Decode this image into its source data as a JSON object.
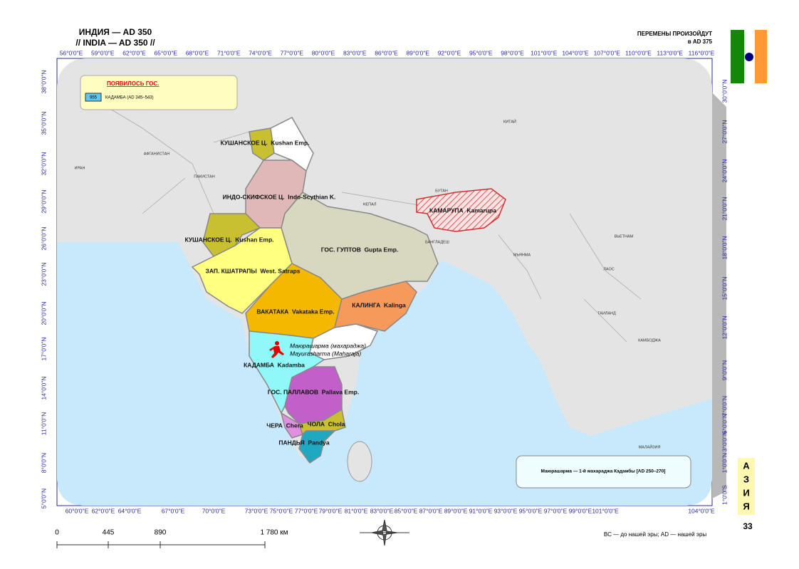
{
  "header": {
    "title_ru": "ИНДИЯ — AD 350",
    "title_en": "// INDIA — AD 350 //",
    "next_change": "ПЕРЕМЕНЫ ПРОИЗОЙДУТ",
    "next_date": "в AD 375"
  },
  "graticule": {
    "top": [
      "56°0'0\"E",
      "59°0'0\"E",
      "62°0'0\"E",
      "65°0'0\"E",
      "68°0'0\"E",
      "71°0'0\"E",
      "74°0'0\"E",
      "77°0'0\"E",
      "80°0'0\"E",
      "83°0'0\"E",
      "86°0'0\"E",
      "89°0'0\"E",
      "92°0'0\"E",
      "95°0'0\"E",
      "98°0'0\"E",
      "101°0'0\"E",
      "104°0'0\"E",
      "107°0'0\"E",
      "110°0'0\"E",
      "113°0'0\"E",
      "116°0'0\"E"
    ],
    "bottom": [
      "60°0'0\"E",
      "62°0'0\"E",
      "64°0'0\"E",
      "67°0'0\"E",
      "70°0'0\"E",
      "73°0'0\"E",
      "75°0'0\"E",
      "77°0'0\"E",
      "79°0'0\"E",
      "81°0'0\"E",
      "83°0'0\"E",
      "85°0'0\"E",
      "87°0'0\"E",
      "89°0'0\"E",
      "91°0'0\"E",
      "93°0'0\"E",
      "95°0'0\"E",
      "97°0'0\"E",
      "99°0'0\"E",
      "101°0'0\"E",
      "104°0'0\"E"
    ],
    "left": [
      "38°0'0\"N",
      "35°0'0\"N",
      "32°0'0\"N",
      "29°0'0\"N",
      "26°0'0\"N",
      "23°0'0\"N",
      "20°0'0\"N",
      "17°0'0\"N",
      "14°0'0\"N",
      "11°0'0\"N",
      "8°0'0\"N",
      "5°0'0\"N"
    ],
    "right": [
      "30°0'0\"N",
      "27°0'0\"N",
      "24°0'0\"N",
      "21°0'0\"N",
      "18°0'0\"N",
      "15°0'0\"N",
      "12°0'0\"N",
      "9°0'0\"N",
      "7°0'0\"N",
      "5°0'0\"N",
      "3°0'0\"N",
      "1°0'0\"N",
      "1°0'0\"S"
    ]
  },
  "legend": {
    "title": "ПОЯВИЛОСЬ ГОС.",
    "code": "955",
    "entry": "КАДАМБА (AD 345–543)"
  },
  "countries": [
    "ИРАН",
    "АФГАНИСТАН",
    "ПАКИСТАН",
    "НЕПАЛ",
    "БУТАН",
    "КИТАЙ",
    "БАНГЛАДЕШ",
    "МЬЯНМА",
    "ВЬЕТНАМ",
    "ЛАОС",
    "ТАИЛАНД",
    "КАМБОДЖА",
    "МАЛАЙЗИЯ"
  ],
  "polities": [
    "КУШАНСКОЕ Ц.  Kushan Emp.",
    "ИНДО-СКИФСКОЕ Ц.  Indo-Scythian K.",
    "КУШАНСКОЕ Ц.  Kushan Emp.",
    "ГОС. ГУПТОВ  Gupta Emp.",
    "ЗАП. КШАТРАПЫ  West. Satraps",
    "ВАКАТАКА  Vakataka Emp.",
    "КАЛИНГА  Kalinga",
    "КАМАРУПА  Kamarupa",
    "КАДАМБА  Kadamba",
    "ГОС. ПАЛЛАВОВ  Pallava Emp.",
    "ЧЕРА  Chera",
    "ЧОЛА  Chola",
    "ПАНДЬЯ  Pandya"
  ],
  "annotation": {
    "ru": "Маюрашарма (махараджа)",
    "en": "Mayurasharma (Maharaja)"
  },
  "note": "Маюрашарма — 1-й махараджа Кадамбы [AD 250–270]",
  "scale": [
    "0",
    "445",
    "890",
    "1 780 км"
  ],
  "footer": "BC — до нашей эры; AD — нашей эры",
  "side": {
    "letters": [
      "А",
      "З",
      "И",
      "Я"
    ],
    "page": "33"
  }
}
